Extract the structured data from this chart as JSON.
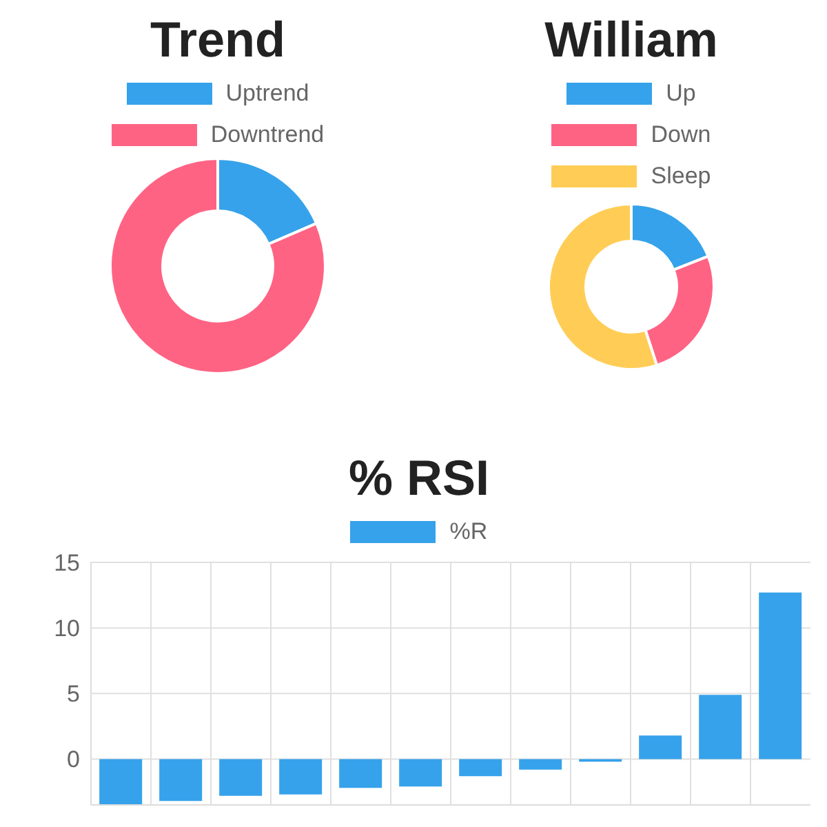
{
  "chart_data": [
    {
      "type": "donut",
      "title": "Trend",
      "categories": [
        "Uptrend",
        "Downtrend"
      ],
      "values": [
        18.5,
        81.5
      ],
      "colors": [
        "#36a2eb",
        "#ff6384"
      ],
      "legend": "top"
    },
    {
      "type": "donut",
      "title": "William",
      "categories": [
        "Up",
        "Down",
        "Sleep"
      ],
      "values": [
        19,
        26,
        55
      ],
      "colors": [
        "#36a2eb",
        "#ff6384",
        "#ffcd56"
      ],
      "legend": "top"
    },
    {
      "type": "bar",
      "title": "% RSI",
      "categories": [
        null,
        null,
        null,
        null,
        null,
        null,
        null,
        null,
        null,
        null,
        null,
        null
      ],
      "series": [
        {
          "name": "%R",
          "color": "#36a2eb",
          "values": [
            -3.5,
            -3.2,
            -2.8,
            -2.7,
            -2.2,
            -2.1,
            -1.3,
            -0.8,
            -0.2,
            1.8,
            4.9,
            12.7
          ]
        }
      ],
      "ylim": [
        -3.5,
        15
      ],
      "yticks": [
        0,
        5,
        10,
        15
      ],
      "grid": true,
      "legend": "top"
    }
  ]
}
